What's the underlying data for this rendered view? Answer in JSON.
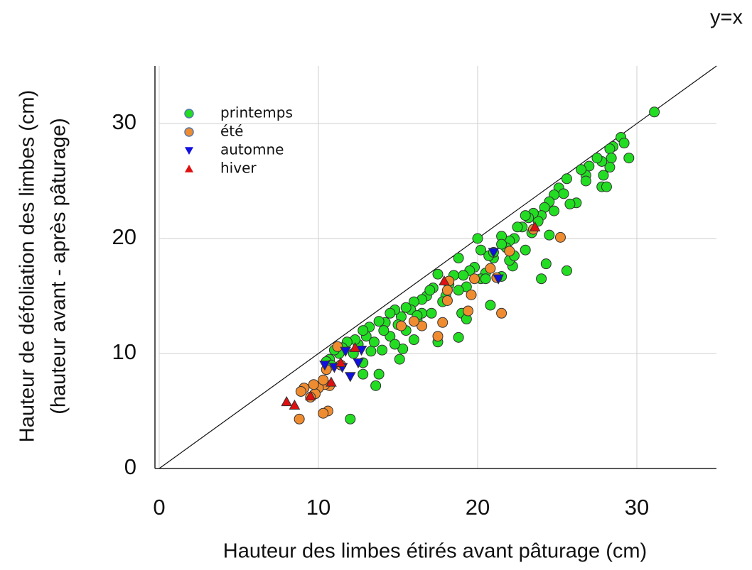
{
  "chart_data": {
    "type": "scatter",
    "annotation": "y=x",
    "x_label": "Hauteur des limbes étirés avant pâturage (cm)",
    "y_label": [
      "Hauteur de défoliation des limbes (cm)",
      "(hauteur avant - après pâturage)"
    ],
    "xlim": [
      0,
      35
    ],
    "ylim": [
      0,
      35
    ],
    "xticks": [
      0,
      10,
      20,
      30
    ],
    "yticks": [
      0,
      10,
      20,
      30
    ],
    "grid": true,
    "legend": "upper left",
    "series": [
      {
        "name": "printemps",
        "color": "#22dd22",
        "marker": "circle",
        "x": [
          31.1,
          29,
          29.2,
          28.5,
          28.3,
          28.4,
          29.5,
          28.3,
          27.8,
          27.5,
          27.9,
          27.8,
          28.1,
          27,
          26.8,
          26.5,
          26.8,
          26.2,
          25.8,
          25.6,
          25.6,
          25.1,
          25.4,
          24.8,
          24.8,
          24.5,
          24.2,
          24.3,
          24,
          24,
          23.8,
          23.5,
          23.2,
          23,
          22.8,
          23.4,
          24.5,
          22.5,
          22.3,
          22,
          21.8,
          21.5,
          22.2,
          22,
          21.5,
          21,
          20.7,
          20.8,
          20.5,
          20.2,
          20,
          20.2,
          19.8,
          19.5,
          19.3,
          19.1,
          19,
          18.8,
          18.5,
          18.8,
          18.2,
          18,
          17.8,
          17.5,
          17.5,
          17.2,
          17.1,
          16.8,
          16.5,
          16.5,
          16.2,
          16,
          16,
          15.8,
          15.5,
          15.5,
          15.2,
          15.3,
          15.1,
          15,
          14.8,
          14.5,
          14.5,
          14.2,
          14.1,
          14,
          13.8,
          13.8,
          13.6,
          13.5,
          13.3,
          13.2,
          13,
          12.8,
          12.8,
          12.5,
          12.3,
          12.2,
          12,
          11.8,
          11.5,
          11.3,
          11,
          10.7,
          10.5,
          10.8,
          18.8,
          19.3,
          20.5,
          21,
          21.5,
          23,
          22.3,
          17,
          16.2,
          14.8,
          12.8
        ],
        "values": [
          31,
          28.8,
          28.3,
          28,
          27.8,
          27,
          27,
          26.2,
          26.7,
          27,
          25.5,
          24.5,
          24.5,
          26.3,
          25.5,
          26,
          25,
          23.1,
          23,
          25.2,
          17.2,
          24.4,
          23.9,
          23.8,
          22.4,
          23.2,
          22.7,
          17.8,
          16.5,
          22,
          21.5,
          22.2,
          21.8,
          22,
          21,
          20.5,
          20.3,
          21,
          20,
          19.8,
          19.2,
          20.2,
          17.6,
          18.1,
          16.7,
          18.3,
          18.5,
          14.2,
          17,
          19,
          20,
          16.5,
          17.5,
          17.2,
          15.8,
          16.8,
          13.5,
          18.3,
          16.8,
          15.5,
          16,
          15,
          14.5,
          16.9,
          11,
          15.7,
          13.5,
          15,
          14.7,
          13.5,
          12.9,
          14.5,
          11.2,
          13.8,
          14,
          12,
          13.2,
          10.4,
          9.5,
          12.5,
          13.8,
          13.5,
          11.5,
          12.7,
          12,
          10.3,
          12.8,
          8.2,
          7.2,
          11,
          10.2,
          12.3,
          11.5,
          12,
          9.2,
          10.8,
          11.2,
          10,
          4.3,
          11,
          10.5,
          10,
          10.3,
          9.5,
          9.3,
          9,
          11.4,
          13,
          16.5,
          18.8,
          19.5,
          19,
          18.5,
          15.5,
          13.3,
          10.8,
          8.2
        ]
      },
      {
        "name": "été",
        "color": "#f08c30",
        "marker": "circle",
        "x": [
          25.2,
          23.5,
          22,
          21.5,
          21.2,
          20.8,
          19.8,
          19.6,
          19.4,
          18.2,
          18.1,
          18.1,
          17.8,
          17.5,
          16.5,
          16,
          15.2,
          11.4,
          11.2,
          10.7,
          10.5,
          10.4,
          10.6,
          10.3,
          10,
          9.8,
          9.7,
          9.5,
          9.1,
          8.9,
          8.8,
          10.3
        ],
        "values": [
          20.1,
          20.8,
          18.9,
          13.5,
          16.6,
          17.4,
          16.5,
          15.1,
          13.7,
          16.3,
          15.5,
          14.6,
          12.7,
          11.5,
          12.4,
          12.8,
          12.4,
          9,
          10.6,
          7.2,
          8.6,
          7.3,
          5,
          4.8,
          7,
          6.5,
          7.3,
          6.2,
          7,
          6.7,
          4.3,
          7.7
        ]
      },
      {
        "name": "automne",
        "color": "#1010e0",
        "marker": "triangle-down",
        "x": [
          21,
          21.3,
          12.7,
          12.5,
          12,
          11.5,
          11,
          10.4,
          11.7
        ],
        "values": [
          18.8,
          16.5,
          10.3,
          9.2,
          8,
          8.8,
          8.8,
          9,
          10.2
        ]
      },
      {
        "name": "hiver",
        "color": "#e01010",
        "marker": "triangle-up",
        "x": [
          8,
          8.5,
          9.5,
          10.8,
          11.4,
          12.3,
          17.9,
          23.6
        ],
        "values": [
          5.8,
          5.5,
          6.3,
          7.5,
          9.2,
          10.5,
          16.3,
          21
        ]
      }
    ]
  }
}
